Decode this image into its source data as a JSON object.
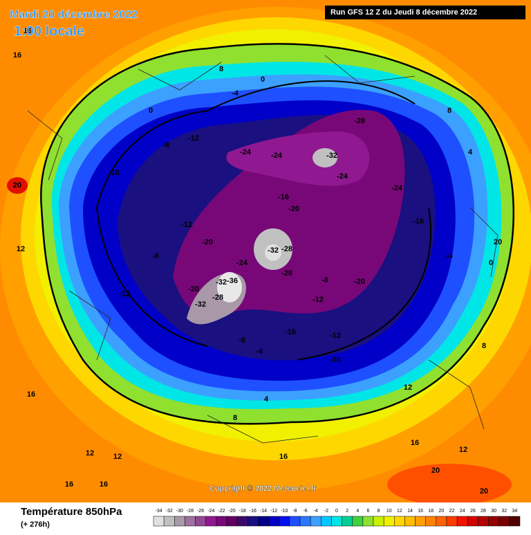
{
  "header": {
    "date": "Mardi 20 décembre 2022",
    "time": "1:00 locale",
    "run": "Run GFS 12 Z du Jeudi 8 décembre 2022"
  },
  "map": {
    "labels": [
      16,
      16,
      8,
      0,
      -4,
      -8,
      -12,
      -16,
      -12,
      -8,
      -20,
      -24,
      -24,
      -28,
      -32,
      -24,
      -32,
      -28,
      -16,
      -20,
      -28,
      -24,
      -32,
      -36,
      -28,
      -32,
      -20,
      -12,
      -8,
      -4,
      0,
      4,
      8,
      12,
      16,
      20,
      12,
      8,
      4,
      -12,
      -16,
      -16,
      -20,
      -24,
      -12,
      -8,
      16,
      12,
      16,
      20,
      20,
      16,
      -4,
      0,
      8,
      12,
      16,
      12,
      20,
      -16
    ],
    "copyright": "Copyright © 2022 Meteociel.fr"
  },
  "legend": {
    "title": "Température 850hPa",
    "subtitle": "(+ 276h)",
    "values": [
      -34,
      -32,
      -30,
      -28,
      -26,
      -24,
      -22,
      -20,
      -18,
      -16,
      -14,
      -12,
      -10,
      -8,
      -6,
      -4,
      -2,
      0,
      2,
      4,
      6,
      8,
      10,
      12,
      14,
      16,
      18,
      20,
      22,
      24,
      26,
      28,
      30,
      32,
      34
    ],
    "colors": [
      "#e0e0e0",
      "#c0c0c0",
      "#a898a8",
      "#a070a0",
      "#904890",
      "#901890",
      "#780878",
      "#600060",
      "#3a0a6a",
      "#1a1080",
      "#00008c",
      "#0000c8",
      "#0010f0",
      "#1e50ff",
      "#2c78ff",
      "#3ca0ff",
      "#00c8ff",
      "#00e6e6",
      "#00d096",
      "#40d040",
      "#90e030",
      "#c8f000",
      "#f0f000",
      "#ffd700",
      "#ffbe00",
      "#ffa000",
      "#ff8200",
      "#ff6400",
      "#ff3c00",
      "#f01400",
      "#d20000",
      "#b40000",
      "#960000",
      "#780000",
      "#500000"
    ]
  }
}
